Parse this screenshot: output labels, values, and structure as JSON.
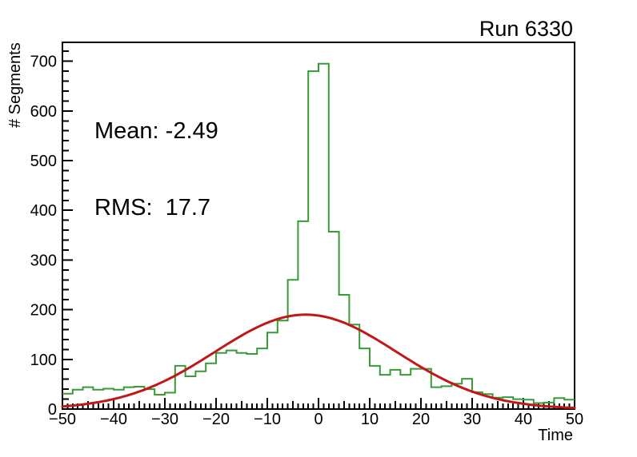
{
  "chart_data": {
    "type": "histogram",
    "title": "Run 6330",
    "xlabel": "Time",
    "ylabel": "# Segments",
    "xlim": [
      -50,
      50
    ],
    "ylim": [
      0,
      738
    ],
    "x_tick_values": [
      -50,
      -40,
      -30,
      -20,
      -10,
      0,
      10,
      20,
      30,
      40,
      50
    ],
    "x_tick_labels": [
      "−50",
      "−40",
      "−30",
      "−20",
      "−10",
      "0",
      "10",
      "20",
      "30",
      "40",
      "50"
    ],
    "x_medium_step": 5,
    "x_minor_step": 1,
    "y_tick_values": [
      0,
      100,
      200,
      300,
      400,
      500,
      600,
      700
    ],
    "y_tick_labels": [
      "0",
      "100",
      "200",
      "300",
      "400",
      "500",
      "600",
      "700"
    ],
    "y_minor_step": 20,
    "grid": false,
    "legend": null,
    "stats": {
      "mean_label": "Mean: -2.49",
      "rms_label": "RMS:  17.7"
    },
    "histogram": {
      "color": "#379b37",
      "bin_start": -50,
      "bin_width": 2,
      "counts": [
        31,
        39,
        44,
        39,
        41,
        39,
        44,
        45,
        40,
        29,
        33,
        87,
        66,
        76,
        92,
        113,
        118,
        113,
        111,
        122,
        154,
        178,
        260,
        378,
        680,
        695,
        357,
        230,
        170,
        122,
        87,
        69,
        79,
        69,
        81,
        81,
        44,
        46,
        51,
        61,
        34,
        30,
        23,
        24,
        20,
        19,
        12,
        13,
        22,
        19
      ]
    },
    "fit": {
      "shape": "gaussian",
      "color": "#c21717",
      "amplitude": 190,
      "mean": -2.49,
      "sigma": 17.7
    },
    "axis_color": "#000000",
    "background_color": "#ffffff"
  }
}
